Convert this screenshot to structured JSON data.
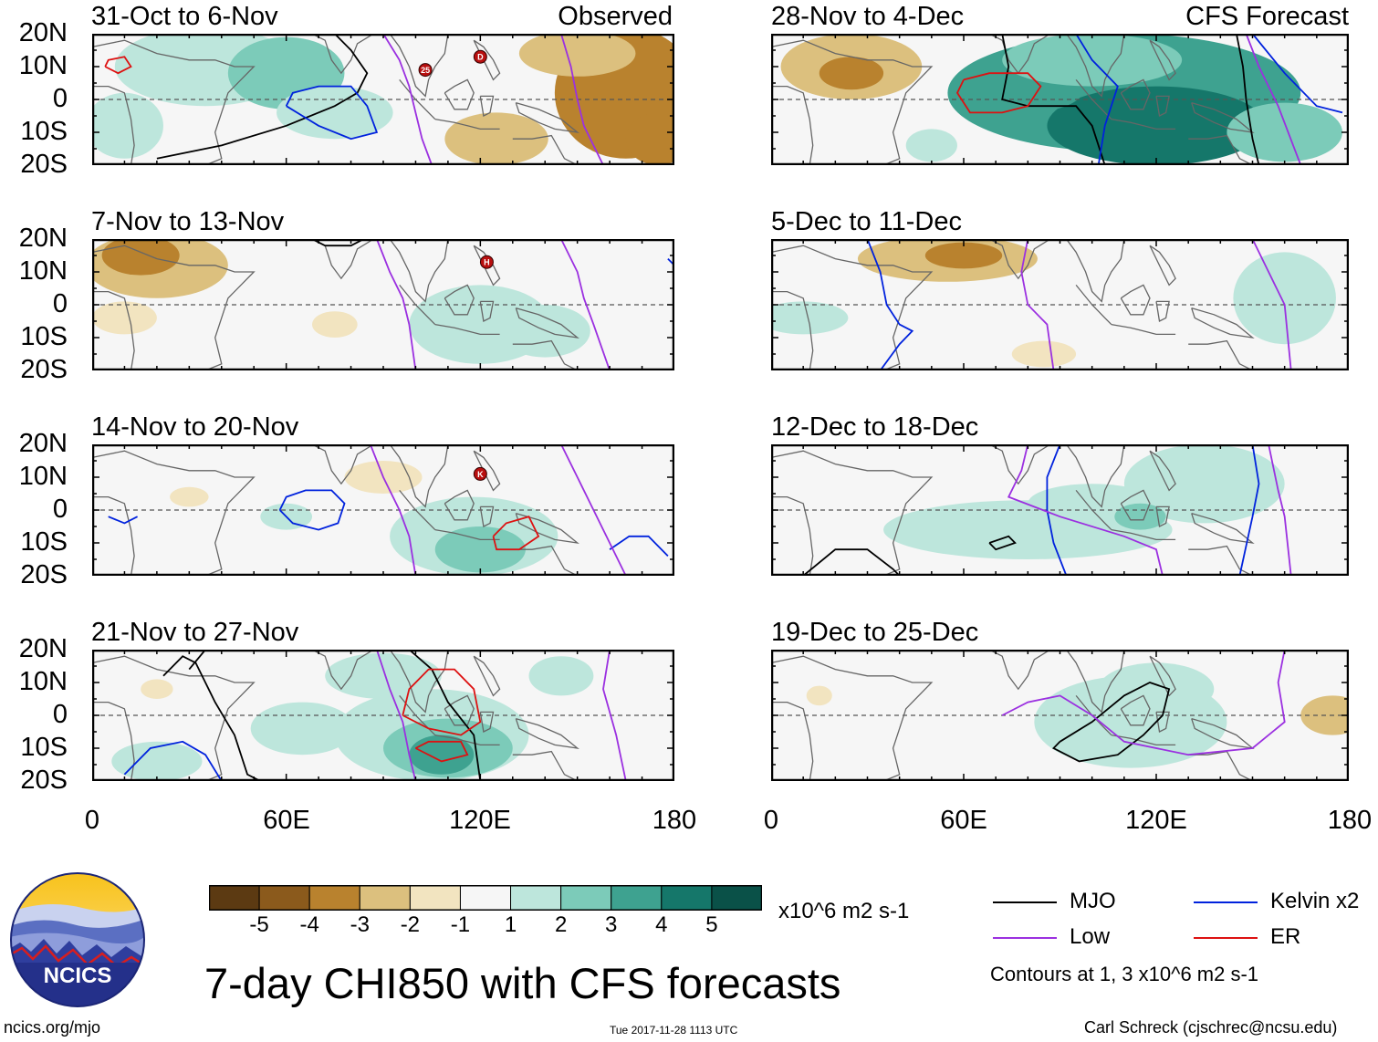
{
  "chart_data": {
    "type": "heatmap",
    "title": "7-day CHI850 with CFS forecasts",
    "units": "x10^6 m2 s-1",
    "x_ticks": [
      "0",
      "60E",
      "120E",
      "180"
    ],
    "y_ticks": [
      "20N",
      "10N",
      "0",
      "10S",
      "20S"
    ],
    "xlim": [
      0,
      180
    ],
    "ylim": [
      -20,
      20
    ],
    "colorbar": {
      "labels": [
        "-5",
        "-4",
        "-3",
        "-2",
        "-1",
        "1",
        "2",
        "3",
        "4",
        "5"
      ],
      "colors": [
        "#5c3a12",
        "#8b5a1c",
        "#b9822e",
        "#dcc07e",
        "#f2e4c0",
        "#f6f6f6",
        "#bde6dc",
        "#7ccbb9",
        "#3ea290",
        "#15776a",
        "#0a5148"
      ]
    },
    "panels": [
      {
        "title": "31-Oct to 6-Nov",
        "tag": "Observed"
      },
      {
        "title": "7-Nov to 13-Nov",
        "tag": ""
      },
      {
        "title": "14-Nov to 20-Nov",
        "tag": ""
      },
      {
        "title": "21-Nov to 27-Nov",
        "tag": ""
      },
      {
        "title": "28-Nov to 4-Dec",
        "tag": "CFS Forecast"
      },
      {
        "title": "5-Dec to 11-Dec",
        "tag": ""
      },
      {
        "title": "12-Dec to 18-Dec",
        "tag": ""
      },
      {
        "title": "19-Dec to 25-Dec",
        "tag": ""
      }
    ],
    "legend": [
      {
        "name": "MJO",
        "color": "#000000"
      },
      {
        "name": "Kelvin x2",
        "color": "#0022dd"
      },
      {
        "name": "Low",
        "color": "#9b30e0"
      },
      {
        "name": "ER",
        "color": "#dd1111"
      }
    ],
    "contours_note": "Contours at 1, 3 x10^6 m2 s-1",
    "storm_markers": [
      {
        "panel": 0,
        "label": "25",
        "lon": 103,
        "lat": 9
      },
      {
        "panel": 0,
        "label": "D",
        "lon": 120,
        "lat": 13
      },
      {
        "panel": 1,
        "label": "H",
        "lon": 122,
        "lat": 13
      },
      {
        "panel": 2,
        "label": "K",
        "lon": 120,
        "lat": 11
      }
    ]
  },
  "logo": {
    "text": "NCICS"
  },
  "footer": {
    "left": "ncics.org/mjo",
    "center": "Tue 2017-11-28 1113 UTC",
    "right": "Carl Schreck (cjschrec@ncsu.edu)"
  }
}
